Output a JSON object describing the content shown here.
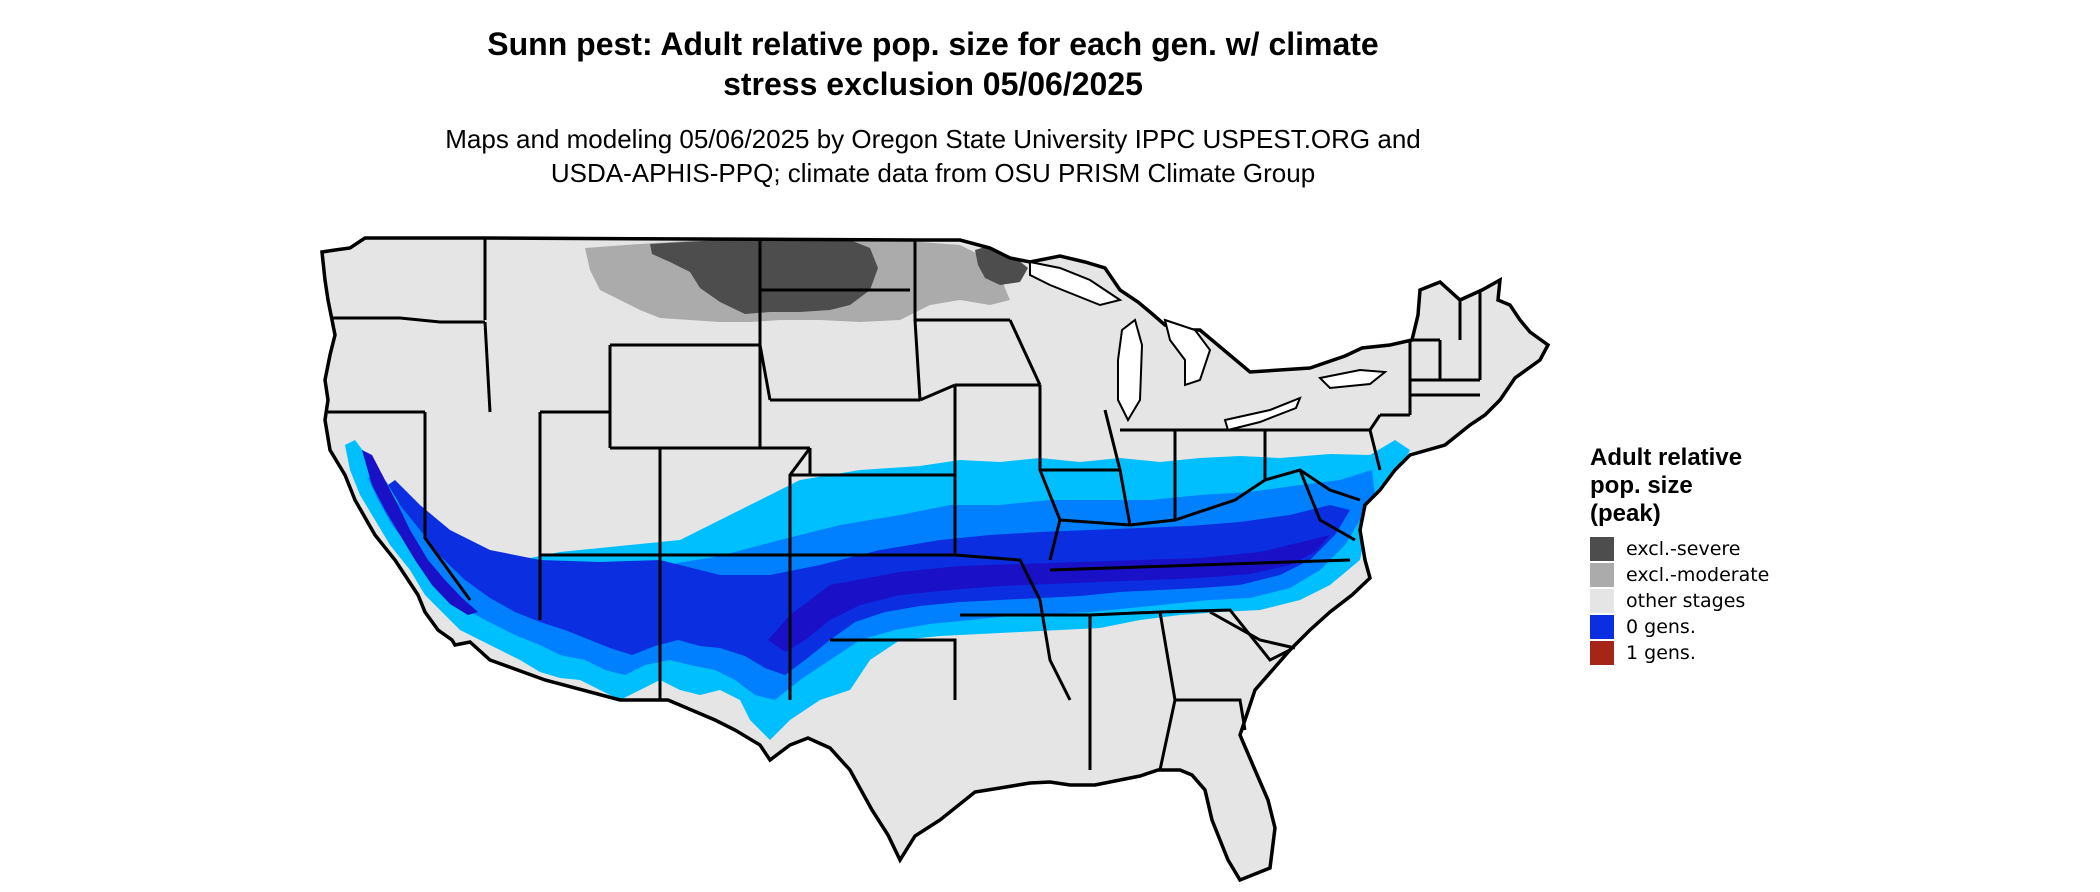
{
  "title": {
    "line1": "Sunn pest: Adult relative pop. size for each gen. w/ climate",
    "line2": "stress exclusion 05/06/2025"
  },
  "subtitle": {
    "line1": "Maps and modeling 05/06/2025 by Oregon State University IPPC USPEST.ORG and",
    "line2": "USDA-APHIS-PPQ; climate data from OSU PRISM Climate Group"
  },
  "legend": {
    "title_lines": [
      "Adult relative",
      "pop. size",
      "(peak)"
    ],
    "items": [
      {
        "label": "excl.-severe",
        "color": "#4d4d4d"
      },
      {
        "label": "excl.-moderate",
        "color": "#ababab"
      },
      {
        "label": "other stages",
        "color": "#e5e5e5"
      },
      {
        "label": "0 gens.",
        "color": "#0a2ee0"
      },
      {
        "label": "1 gens.",
        "color": "#a52618"
      }
    ]
  },
  "colors": {
    "land": "#e5e5e5",
    "border": "#000000",
    "light_blue": "#00bfff",
    "mid_blue": "#0080ff",
    "dark_blue": "#0a2ee0",
    "deep_blue": "#1a10c8"
  }
}
